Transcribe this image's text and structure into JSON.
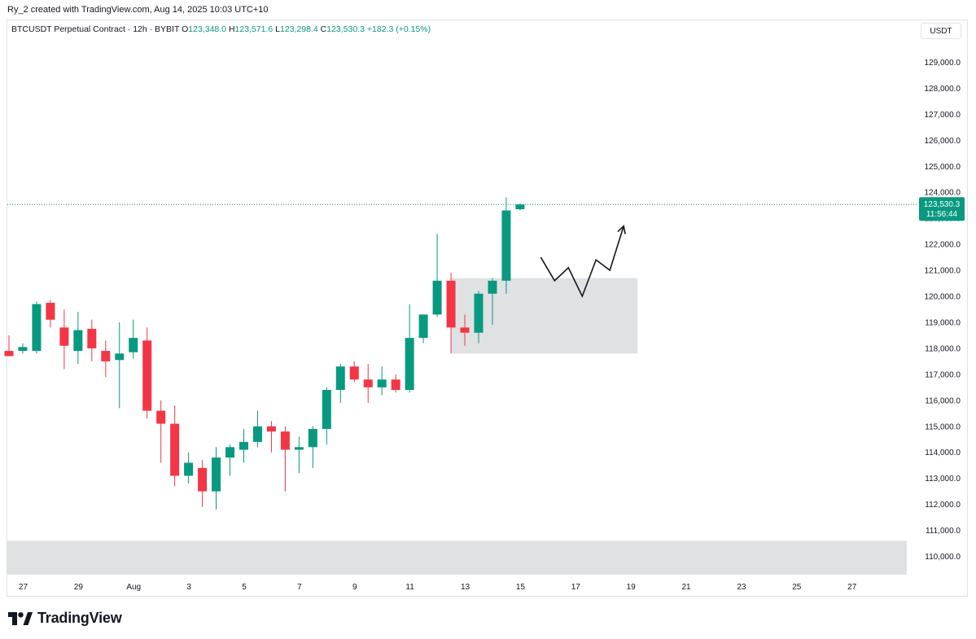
{
  "header": {
    "caption": "Ry_2 created with TradingView.com, Aug 14, 2025 10:03 UTC+10"
  },
  "legend": {
    "symbol": "BTCUSDT Perpetual Contract · 12h · BYBIT",
    "open_label": "O",
    "open": "123,348.0",
    "high_label": "H",
    "high": "123,571.6",
    "low_label": "L",
    "low": "123,298.4",
    "close_label": "C",
    "close": "123,530.3",
    "change": "+182.3 (+0.15%)"
  },
  "price_scale": {
    "unit": "USDT"
  },
  "last_price": {
    "value": "123,530.3",
    "countdown": "11:56:44"
  },
  "branding": {
    "name": "TradingView"
  },
  "colors": {
    "up": "#089981",
    "down": "#f23645",
    "zone": "#e0e1e3",
    "axis_text": "#131722",
    "last_line": "#089981"
  },
  "chart_data": {
    "type": "candlestick",
    "ylim": [
      109200,
      130000
    ],
    "y_ticks": [
      110000,
      111000,
      112000,
      113000,
      114000,
      115000,
      116000,
      117000,
      118000,
      119000,
      120000,
      121000,
      122000,
      123000,
      124000,
      125000,
      126000,
      127000,
      128000,
      129000
    ],
    "y_tick_labels": [
      "110,000.0",
      "111,000.0",
      "112,000.0",
      "113,000.0",
      "114,000.0",
      "115,000.0",
      "116,000.0",
      "117,000.0",
      "118,000.0",
      "119,000.0",
      "120,000.0",
      "121,000.0",
      "122,000.0",
      "123,000.0",
      "124,000.0",
      "125,000.0",
      "126,000.0",
      "127,000.0",
      "128,000.0",
      "129,000.0"
    ],
    "x_tick_labels": [
      "27",
      "29",
      "Aug",
      "3",
      "5",
      "7",
      "9",
      "11",
      "13",
      "15",
      "17",
      "19",
      "21",
      "23",
      "25",
      "27"
    ],
    "x_tick_index": [
      1,
      5,
      9,
      13,
      17,
      21,
      25,
      29,
      33,
      37,
      41,
      45,
      49,
      53,
      57,
      61
    ],
    "candles": [
      [
        0,
        117900,
        118500,
        117700,
        117700
      ],
      [
        1,
        117900,
        118200,
        117800,
        118050
      ],
      [
        2,
        117900,
        119800,
        117800,
        119700
      ],
      [
        3,
        119750,
        119850,
        118800,
        119100
      ],
      [
        4,
        118800,
        119500,
        117200,
        118100
      ],
      [
        5,
        117900,
        119400,
        117400,
        118700
      ],
      [
        6,
        118750,
        119100,
        117500,
        118000
      ],
      [
        7,
        117900,
        118300,
        116900,
        117500
      ],
      [
        8,
        117550,
        119000,
        115700,
        117800
      ],
      [
        9,
        117850,
        119100,
        117600,
        118400
      ],
      [
        10,
        118300,
        118800,
        115300,
        115600
      ],
      [
        11,
        115600,
        116000,
        113600,
        115100
      ],
      [
        12,
        115100,
        115800,
        112700,
        113100
      ],
      [
        13,
        113100,
        114000,
        112800,
        113600
      ],
      [
        14,
        113400,
        113700,
        111900,
        112500
      ],
      [
        15,
        112500,
        114200,
        111800,
        113800
      ],
      [
        16,
        113800,
        114300,
        113100,
        114200
      ],
      [
        17,
        114100,
        114900,
        113600,
        114400
      ],
      [
        18,
        114400,
        115600,
        114200,
        115000
      ],
      [
        19,
        115000,
        115200,
        114000,
        114800
      ],
      [
        20,
        114800,
        115000,
        112500,
        114100
      ],
      [
        21,
        114100,
        114600,
        113200,
        114200
      ],
      [
        22,
        114200,
        115000,
        113400,
        114900
      ],
      [
        23,
        114900,
        116500,
        114300,
        116400
      ],
      [
        24,
        116400,
        117400,
        115900,
        117300
      ],
      [
        25,
        117300,
        117500,
        116700,
        116800
      ],
      [
        26,
        116800,
        117400,
        115900,
        116500
      ],
      [
        27,
        116500,
        117300,
        116200,
        116800
      ],
      [
        28,
        116800,
        117000,
        116300,
        116400
      ],
      [
        29,
        116400,
        119700,
        116300,
        118400
      ],
      [
        30,
        118400,
        119300,
        118200,
        119300
      ],
      [
        31,
        119300,
        122400,
        119200,
        120600
      ],
      [
        32,
        120600,
        120900,
        117800,
        118800
      ],
      [
        33,
        118800,
        119300,
        118100,
        118600
      ],
      [
        34,
        118600,
        120200,
        118200,
        120100
      ],
      [
        35,
        120100,
        120700,
        118900,
        120600
      ],
      [
        36,
        120600,
        123800,
        120100,
        123300
      ],
      [
        37,
        123348,
        123572,
        123298,
        123530.3
      ]
    ],
    "zones": [
      {
        "from_index": 32,
        "to_index": 45.5,
        "low": 117800,
        "high": 120700
      },
      {
        "from_index": -0.5,
        "to_index": 65,
        "low": 109300,
        "high": 110600
      }
    ],
    "projection": [
      [
        38.5,
        121500
      ],
      [
        39.5,
        120600
      ],
      [
        40.5,
        121100
      ],
      [
        41.5,
        120000
      ],
      [
        42.5,
        121400
      ],
      [
        43.5,
        121000
      ],
      [
        44.5,
        122700
      ]
    ],
    "last_price_value": 123530.3
  }
}
